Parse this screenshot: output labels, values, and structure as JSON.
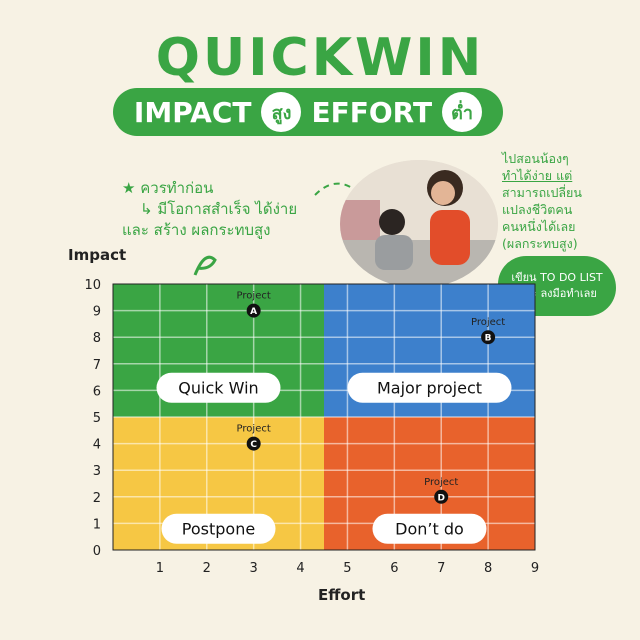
{
  "header": {
    "title": "QUICKWIN",
    "subtitle_a": "IMPACT",
    "subtitle_a_level": "สูง",
    "subtitle_b": "EFFORT",
    "subtitle_b_level": "ต่ำ"
  },
  "left_note": {
    "line1": "ควรทำก่อน",
    "line2": "มีโอกาสสำเร็จ ได้ง่าย",
    "line3": "และ สร้าง ผลกระทบสูง"
  },
  "right_note": {
    "lines": [
      "ไปสอนน้องๆ",
      "ทำได้ง่าย แต่",
      "สามารถเปลี่ยน",
      "แปลงชีวิตคน",
      "คนหนึ่งได้เลย",
      "(ผลกระทบสูง)"
    ]
  },
  "bubble": {
    "line1": "เขียน TO DO LIST",
    "line2": "และ ลงมือทำเลย"
  },
  "colors": {
    "green": "#3aa544",
    "blue": "#3d80cc",
    "yellow": "#f6c744",
    "orange": "#e8622c",
    "background": "#f7f2e4"
  },
  "chart_data": {
    "type": "scatter",
    "xlabel": "Effort",
    "ylabel": "Impact",
    "xlim": [
      0,
      9
    ],
    "ylim": [
      0,
      10
    ],
    "x_ticks": [
      1,
      2,
      3,
      4,
      5,
      6,
      7,
      8,
      9
    ],
    "y_ticks": [
      0,
      1,
      2,
      3,
      4,
      5,
      6,
      7,
      8,
      9,
      10
    ],
    "grid": true,
    "quadrant_split": {
      "x": 4.5,
      "y": 5
    },
    "quadrants": [
      {
        "label": "Quick Win",
        "position": "top-left",
        "color": "#3aa544"
      },
      {
        "label": "Major project",
        "position": "top-right",
        "color": "#3d80cc"
      },
      {
        "label": "Postpone",
        "position": "bottom-left",
        "color": "#f6c744"
      },
      {
        "label": "Don’t do",
        "position": "bottom-right",
        "color": "#e8622c"
      }
    ],
    "points": [
      {
        "label": "Project",
        "marker": "A",
        "x": 3,
        "y": 9
      },
      {
        "label": "Project",
        "marker": "B",
        "x": 8,
        "y": 8
      },
      {
        "label": "Project",
        "marker": "C",
        "x": 3,
        "y": 4
      },
      {
        "label": "Project",
        "marker": "D",
        "x": 7,
        "y": 2
      }
    ]
  }
}
